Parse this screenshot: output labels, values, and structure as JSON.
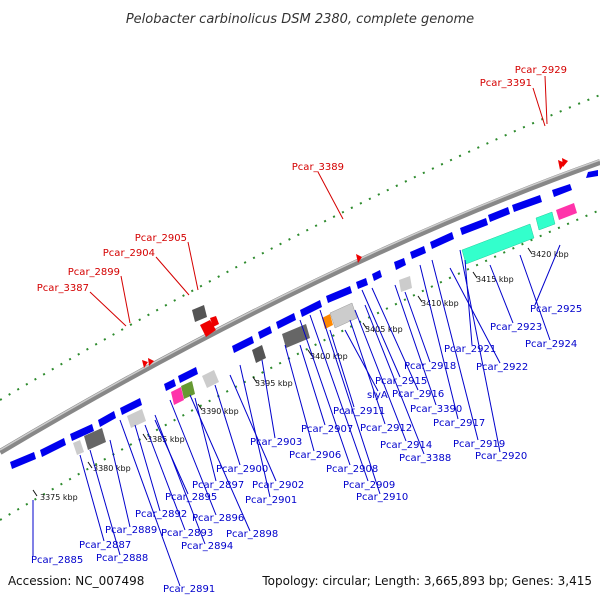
{
  "title": "Pelobacter carbinolicus DSM 2380, complete genome",
  "footer": {
    "accession": "Accession: NC_007498",
    "topology": "Topology: circular; Length: 3,665,893 bp; Genes: 3,415"
  },
  "colors": {
    "forward_gene": "#0000ee",
    "reverse_gene": "#0000ee",
    "rna_red": "#ee0000",
    "backbone": "#999999",
    "dots": "#2e8b2e",
    "label_red": "#d40000",
    "label_blue": "#0000cc"
  },
  "ticks": [
    {
      "label": "3375 kbp"
    },
    {
      "label": "3380 kbp"
    },
    {
      "label": "3385 kbp"
    },
    {
      "label": "3390 kbp"
    },
    {
      "label": "3395 kbp"
    },
    {
      "label": "3400 kbp"
    },
    {
      "label": "3405 kbp"
    },
    {
      "label": "3410 kbp"
    },
    {
      "label": "3415 kbp"
    },
    {
      "label": "3420 kbp"
    }
  ],
  "red_labels": [
    {
      "text": "Pcar_2929"
    },
    {
      "text": "Pcar_3391"
    },
    {
      "text": "Pcar_3389"
    },
    {
      "text": "Pcar_2905"
    },
    {
      "text": "Pcar_2904"
    },
    {
      "text": "Pcar_2899"
    },
    {
      "text": "Pcar_3387"
    }
  ],
  "blue_labels": [
    {
      "text": "Pcar_2925"
    },
    {
      "text": "Pcar_2923"
    },
    {
      "text": "Pcar_2924"
    },
    {
      "text": "Pcar_2921"
    },
    {
      "text": "Pcar_2922"
    },
    {
      "text": "Pcar_2918"
    },
    {
      "text": "Pcar_2915"
    },
    {
      "text": "Pcar_2916"
    },
    {
      "text": "Pcar_3390"
    },
    {
      "text": "Pcar_2917"
    },
    {
      "text": "Pcar_2919"
    },
    {
      "text": "Pcar_2920"
    },
    {
      "text": "slyA"
    },
    {
      "text": "Pcar_2911"
    },
    {
      "text": "Pcar_2912"
    },
    {
      "text": "Pcar_2914"
    },
    {
      "text": "Pcar_3388"
    },
    {
      "text": "Pcar_2907"
    },
    {
      "text": "Pcar_2903"
    },
    {
      "text": "Pcar_2906"
    },
    {
      "text": "Pcar_2908"
    },
    {
      "text": "Pcar_2909"
    },
    {
      "text": "Pcar_2910"
    },
    {
      "text": "Pcar_2900"
    },
    {
      "text": "Pcar_2897"
    },
    {
      "text": "Pcar_2902"
    },
    {
      "text": "Pcar_2901"
    },
    {
      "text": "Pcar_2895"
    },
    {
      "text": "Pcar_2892"
    },
    {
      "text": "Pcar_2896"
    },
    {
      "text": "Pcar_2893"
    },
    {
      "text": "Pcar_2898"
    },
    {
      "text": "Pcar_2889"
    },
    {
      "text": "Pcar_2894"
    },
    {
      "text": "Pcar_2887"
    },
    {
      "text": "Pcar_2888"
    },
    {
      "text": "Pcar_2885"
    },
    {
      "text": "Pcar_2891"
    }
  ]
}
